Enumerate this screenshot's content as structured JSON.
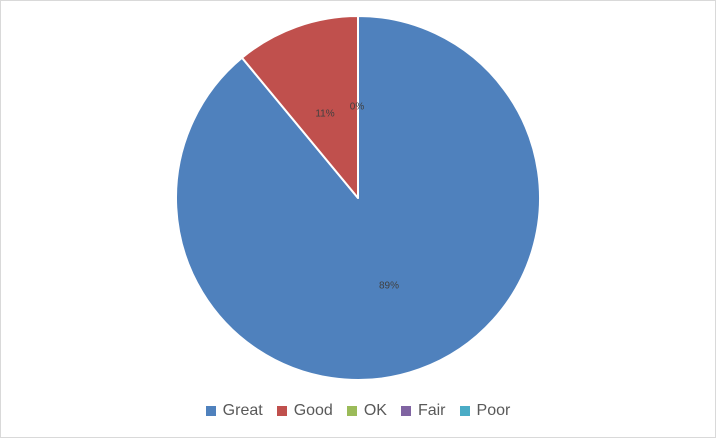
{
  "chart_data": {
    "type": "pie",
    "title": "",
    "categories": [
      "Great",
      "Good",
      "OK",
      "Fair",
      "Poor"
    ],
    "values": [
      89,
      11,
      0,
      0,
      0
    ],
    "data_labels": [
      "89%",
      "11%",
      "0%",
      "",
      ""
    ],
    "colors": [
      "#4f81bd",
      "#c0504d",
      "#9bbb59",
      "#8064a2",
      "#4bacc6"
    ],
    "start_angle": "12 o'clock",
    "direction": "clockwise",
    "legend": "bottom"
  }
}
